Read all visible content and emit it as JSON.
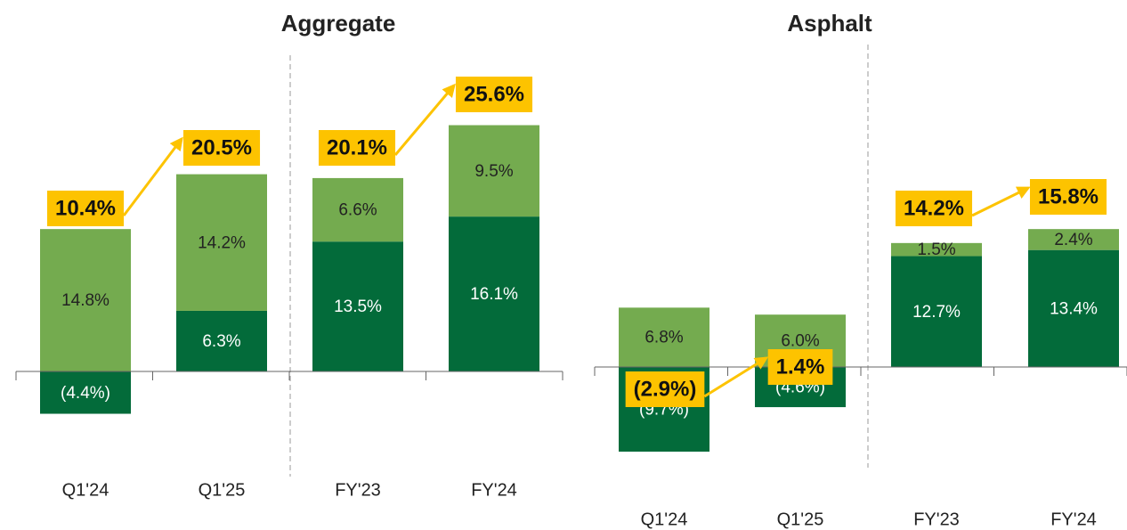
{
  "chart_data": [
    {
      "type": "bar",
      "stacked": true,
      "title": "Aggregate",
      "categories": [
        "Q1'24",
        "Q1'25",
        "FY'23",
        "FY'24"
      ],
      "ylim": [
        -10,
        30
      ],
      "series": [
        {
          "color": "#036b3a",
          "label_color": "#ffffff",
          "values": [
            -4.4,
            6.3,
            13.5,
            16.1
          ],
          "value_labels": [
            "(4.4%)",
            "6.3%",
            "13.5%",
            "16.1%"
          ]
        },
        {
          "color": "#74ab4f",
          "label_color": "#222222",
          "values": [
            14.8,
            14.2,
            6.6,
            9.5
          ],
          "value_labels": [
            "14.8%",
            "14.2%",
            "6.6%",
            "9.5%"
          ]
        }
      ],
      "totals": {
        "color": "#fdc300",
        "values": [
          10.4,
          20.5,
          20.1,
          25.6
        ],
        "value_labels": [
          "10.4%",
          "20.5%",
          "20.1%",
          "25.6%"
        ]
      }
    },
    {
      "type": "bar",
      "stacked": true,
      "title": "Asphalt",
      "categories": [
        "Q1'24",
        "Q1'25",
        "FY'23",
        "FY'24"
      ],
      "ylim": [
        -10,
        20
      ],
      "series": [
        {
          "color": "#036b3a",
          "label_color": "#ffffff",
          "values": [
            -9.7,
            -4.6,
            12.7,
            13.4
          ],
          "value_labels": [
            "(9.7%)",
            "(4.6%)",
            "12.7%",
            "13.4%"
          ]
        },
        {
          "color": "#74ab4f",
          "label_color": "#222222",
          "values": [
            6.8,
            6.0,
            1.5,
            2.4
          ],
          "value_labels": [
            "6.8%",
            "6.0%",
            "1.5%",
            "2.4%"
          ]
        }
      ],
      "totals": {
        "color": "#fdc300",
        "values": [
          -2.9,
          1.4,
          14.2,
          15.8
        ],
        "value_labels": [
          "(2.9%)",
          "1.4%",
          "14.2%",
          "15.8%"
        ]
      }
    }
  ]
}
